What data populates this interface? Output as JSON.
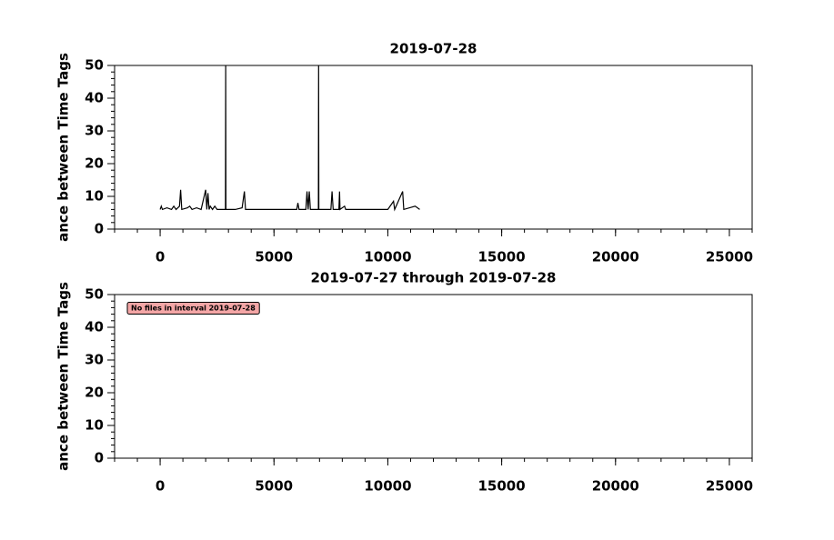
{
  "chart_data": [
    {
      "type": "line",
      "title": "2019-07-28",
      "y_label": "ance between Time Tags",
      "xlim": [
        -2000,
        26000
      ],
      "xticks": [
        0,
        5000,
        10000,
        15000,
        20000,
        25000
      ],
      "ylim": [
        0,
        50
      ],
      "yticks": [
        0,
        10,
        20,
        30,
        40,
        50
      ],
      "x": [
        0,
        50,
        100,
        300,
        500,
        600,
        700,
        850,
        900,
        950,
        1200,
        1300,
        1400,
        1600,
        1800,
        2000,
        2050,
        2100,
        2150,
        2200,
        2300,
        2400,
        2500,
        2870,
        2880,
        2890,
        3300,
        3600,
        3700,
        3750,
        4500,
        5200,
        6000,
        6050,
        6100,
        6400,
        6450,
        6500,
        6550,
        6600,
        6950,
        6960,
        6970,
        7500,
        7550,
        7600,
        7850,
        7880,
        7900,
        8100,
        8150,
        9000,
        10000,
        10250,
        10300,
        10650,
        10700,
        11200,
        11400
      ],
      "series": [
        {
          "color": "#000000",
          "values": [
            6,
            7,
            6,
            6.5,
            6,
            7,
            6,
            7,
            12,
            6,
            6.5,
            7,
            6,
            6.5,
            6,
            12,
            6,
            11,
            6,
            7,
            6,
            7,
            6,
            6,
            50,
            6,
            6,
            6.5,
            11.5,
            6,
            6,
            6,
            6,
            8,
            6,
            6,
            11.5,
            6,
            11.5,
            6,
            6,
            50,
            6,
            6,
            11.5,
            6,
            6,
            11.5,
            6,
            7,
            6,
            6,
            6,
            8.5,
            6,
            11.5,
            6,
            7,
            6
          ]
        }
      ]
    },
    {
      "type": "line",
      "title": "2019-07-27 through 2019-07-28",
      "y_label": "ance between Time Tags",
      "annotation": "No files in interval 2019-07-28",
      "xlim": [
        -2000,
        26000
      ],
      "xticks": [
        0,
        5000,
        10000,
        15000,
        20000,
        25000
      ],
      "ylim": [
        0,
        50
      ],
      "yticks": [
        0,
        10,
        20,
        30,
        40,
        50
      ],
      "x": [],
      "series": []
    }
  ]
}
